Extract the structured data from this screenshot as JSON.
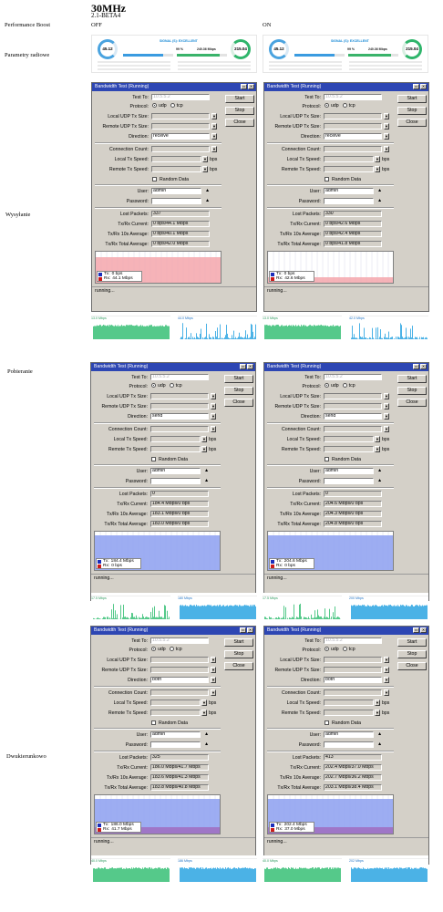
{
  "header": {
    "title": "30MHz",
    "subtitle": "2.1-BETA4"
  },
  "labels": {
    "performance_boost": "Performance Boost",
    "off": "OFF",
    "on": "ON",
    "radio_params": "Parametry radiowe",
    "upload": "Wysyłanie",
    "download": "Pobieranie",
    "bidirectional": "Dwukierunkowo"
  },
  "radio_panels": [
    {
      "capacity_left": "45.12",
      "signal": "SIGNAL (S): EXCELLENT",
      "center_val": "99 %",
      "right_val": "240.36 Mbps",
      "capacity_right": "215.04"
    },
    {
      "capacity_left": "45.12",
      "signal": "SIGNAL (S): EXCELLENT",
      "center_val": "99 %",
      "right_val": "240.36 Mbps",
      "capacity_right": "215.04"
    }
  ],
  "window_labels": {
    "title": "Bandwidth Test (Running)",
    "test_to": "Test To:",
    "protocol": "Protocol:",
    "udp": "udp",
    "tcp": "tcp",
    "local_udp": "Local UDP Tx Size:",
    "remote_udp": "Remote UDP Tx Size:",
    "direction": "Direction:",
    "conn_count": "Connection Count:",
    "local_tx": "Local Tx Speed:",
    "remote_tx": "Remote Tx Speed:",
    "bps": "bps",
    "random_data": "Random Data",
    "user": "User:",
    "password": "Password:",
    "lost": "Lost Packets:",
    "current": "Tx/Rx Current:",
    "avg10": "Tx/Rx 10s Average:",
    "total": "Tx/Rx Total Average:",
    "start": "Start",
    "stop": "Stop",
    "close": "Close",
    "tx": "Tx:",
    "rx": "Rx:",
    "running": "running..."
  },
  "colors": {
    "tx": "#1a2dbb",
    "rx": "#cc1a1a",
    "rx_fill": "#f4a6ab",
    "tx_fill": "#8c9ff0",
    "title": "#2d46b3"
  },
  "tests": [
    {
      "test_to": "10.5.5.2",
      "direction": "receive",
      "user": "admin",
      "lost": "337",
      "current": "0 bps/44.1 Mbps",
      "avg10": "0 bps/40.1 Mbps",
      "total": "0 bps/42.0 Mbps",
      "tx": "0 bps",
      "rx": "44.1 Mbps",
      "mode": "rx",
      "level": 0.82
    },
    {
      "test_to": "10.5.5.2",
      "direction": "receive",
      "user": "admin",
      "lost": "330",
      "current": "0 bps/42.6 Mbps",
      "avg10": "0 bps/42.4 Mbps",
      "total": "0 bps/41.8 Mbps",
      "tx": "0 bps",
      "rx": "42.6 Mbps",
      "mode": "rx",
      "level": 0.22
    },
    {
      "test_to": "10.5.5.2",
      "direction": "send",
      "user": "admin",
      "lost": "0",
      "current": "184.4 Mbps/0 bps",
      "avg10": "183.1 Mbps/0 bps",
      "total": "183.0 Mbps/0 bps",
      "tx": "184.4 Mbps",
      "rx": "0 bps",
      "mode": "tx",
      "level": 0.9
    },
    {
      "test_to": "10.5.5.2",
      "direction": "send",
      "user": "admin",
      "lost": "0",
      "current": "204.6 Mbps/0 bps",
      "avg10": "204.3 Mbps/0 bps",
      "total": "204.8 Mbps/0 bps",
      "tx": "204.6 Mbps",
      "rx": "0 bps",
      "mode": "tx",
      "level": 0.9
    },
    {
      "test_to": "10.5.5.2",
      "direction": "both",
      "user": "admin",
      "lost": "325",
      "current": "186.0 Mbps/41.7 Mbps",
      "avg10": "183.6 Mbps/41.3 Mbps",
      "total": "183.8 Mbps/40.8 Mbps",
      "tx": "186.0 Mbps",
      "rx": "41.7 Mbps",
      "mode": "both",
      "level": 0.9
    },
    {
      "test_to": "10.5.5.2",
      "direction": "both",
      "user": "admin",
      "lost": "413",
      "current": "202.4 Mbps/37.0 Mbps",
      "avg10": "202.7 Mbps/36.2 Mbps",
      "total": "203.1 Mbps/38.4 Mbps",
      "tx": "202.4 Mbps",
      "rx": "37.0 Mbps",
      "mode": "both",
      "level": 0.9
    }
  ],
  "traffic": [
    {
      "left": "13.0 Mbps",
      "right": "44.0 Mbps"
    },
    {
      "left": "13.0 Mbps",
      "right": "42.0 Mbps"
    },
    {
      "left": "17.5 Mbps",
      "right": "180 Mbps"
    },
    {
      "left": "17.5 Mbps",
      "right": "200 Mbps"
    },
    {
      "left": "40.0 Mbps",
      "right": "186 Mbps"
    },
    {
      "left": "40.0 Mbps",
      "right": "202 Mbps"
    }
  ]
}
